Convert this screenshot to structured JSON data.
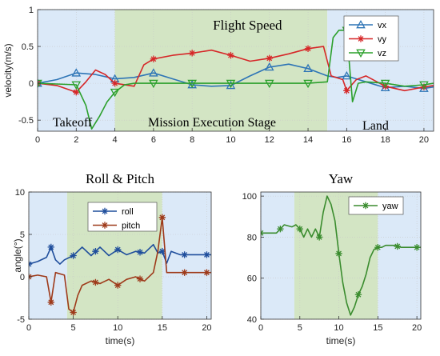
{
  "chart_data": [
    {
      "id": "velocity",
      "type": "line",
      "title": "Flight Speed",
      "xlabel": "",
      "ylabel": "velocity(m/s)",
      "xlim": [
        0,
        20.5
      ],
      "ylim": [
        -0.65,
        1.0
      ],
      "xticks": [
        0,
        2,
        4,
        6,
        8,
        10,
        12,
        14,
        16,
        18,
        20
      ],
      "yticks": [
        -0.5,
        0,
        0.5,
        1
      ],
      "ytick_labels": [
        "-0.5",
        "0",
        "0.5",
        "1"
      ],
      "grid": true,
      "legend_position": "top-right",
      "regions": [
        {
          "x0": 0,
          "x1": 4,
          "color": "#dbe9f8",
          "label": "Takeoff"
        },
        {
          "x0": 4,
          "x1": 15,
          "color": "#d3e5c4",
          "label": "Mission Execution Stage"
        },
        {
          "x0": 15,
          "x1": 20.5,
          "color": "#dbe9f8",
          "label": "Land"
        }
      ],
      "series": [
        {
          "name": "vx",
          "color": "#2e75b6",
          "marker": "triangle",
          "x": [
            0,
            1,
            2,
            3,
            4,
            5,
            6,
            7,
            8,
            9,
            10,
            11,
            12,
            13,
            14,
            15,
            15.5,
            16,
            16.5,
            17,
            18,
            19,
            20,
            20.5
          ],
          "y": [
            0,
            0.05,
            0.14,
            0.12,
            0.06,
            0.08,
            0.14,
            0.06,
            -0.02,
            -0.04,
            -0.03,
            0.1,
            0.22,
            0.26,
            0.2,
            0.1,
            0.08,
            0.1,
            0.06,
            0.02,
            -0.06,
            -0.04,
            -0.07,
            -0.05
          ],
          "marker_x": [
            0,
            2,
            4,
            6,
            8,
            10,
            12,
            14,
            16,
            18,
            20
          ]
        },
        {
          "name": "vy",
          "color": "#d62728",
          "marker": "star",
          "x": [
            0,
            1,
            2,
            2.5,
            3,
            3.5,
            4,
            5,
            5.5,
            6,
            7,
            8,
            9,
            10,
            11,
            12,
            13,
            14,
            14.8,
            15.2,
            15.8,
            16,
            16.5,
            17,
            18,
            19,
            20,
            20.5
          ],
          "y": [
            0,
            -0.03,
            -0.12,
            0.02,
            0.18,
            0.12,
            0.0,
            -0.04,
            0.25,
            0.33,
            0.38,
            0.41,
            0.45,
            0.38,
            0.3,
            0.34,
            0.4,
            0.47,
            0.5,
            0.1,
            0.05,
            -0.1,
            0.05,
            0.1,
            -0.04,
            -0.1,
            -0.05,
            -0.03
          ],
          "marker_x": [
            0,
            2,
            4,
            6,
            8,
            10,
            12,
            14,
            16,
            18,
            20
          ]
        },
        {
          "name": "vz",
          "color": "#2ca02c",
          "marker": "triangle-down",
          "x": [
            0,
            1,
            2,
            2.5,
            2.8,
            3.2,
            3.6,
            4,
            4.5,
            5,
            6,
            8,
            10,
            12,
            14,
            15,
            15.3,
            15.6,
            16,
            16.3,
            16.6,
            17,
            18,
            19,
            20,
            20.5
          ],
          "y": [
            0,
            -0.01,
            -0.02,
            -0.3,
            -0.62,
            -0.45,
            -0.25,
            -0.12,
            -0.02,
            0,
            0,
            0,
            0,
            0,
            0,
            0.02,
            0.62,
            0.72,
            0.72,
            -0.25,
            0.0,
            0.02,
            0.0,
            -0.04,
            -0.02,
            0.0
          ],
          "marker_x": [
            0,
            2,
            4,
            6,
            8,
            10,
            12,
            14,
            16,
            18,
            20
          ]
        }
      ]
    },
    {
      "id": "rollpitch",
      "type": "line",
      "title": "Roll & Pitch",
      "xlabel": "time(s)",
      "ylabel": "angle(°)",
      "xlim": [
        0,
        20.5
      ],
      "ylim": [
        -5,
        10
      ],
      "xticks": [
        0,
        5,
        10,
        15,
        20
      ],
      "yticks": [
        -5,
        0,
        5,
        10
      ],
      "grid": true,
      "legend_position": "top",
      "regions": [
        {
          "x0": 0,
          "x1": 4.3,
          "color": "#dbe9f8"
        },
        {
          "x0": 4.3,
          "x1": 15,
          "color": "#d3e5c4"
        },
        {
          "x0": 15,
          "x1": 20.5,
          "color": "#dbe9f8"
        }
      ],
      "series": [
        {
          "name": "roll",
          "color": "#1f4e9c",
          "marker": "star",
          "x": [
            0,
            1,
            2,
            2.5,
            3,
            3.5,
            4,
            5,
            6,
            7,
            8,
            9,
            10,
            11,
            12,
            13,
            14,
            14.5,
            15,
            15.5,
            16,
            17,
            18,
            19,
            20,
            20.5
          ],
          "y": [
            1.5,
            1.8,
            2.3,
            3.5,
            2.0,
            1.5,
            2.0,
            2.5,
            3.5,
            2.5,
            3.5,
            2.5,
            3.2,
            2.6,
            3.0,
            2.8,
            3.8,
            2.8,
            3.0,
            1.6,
            3.0,
            2.6,
            2.6,
            2.6,
            2.6,
            2.6
          ],
          "marker_x": [
            0,
            2.5,
            5,
            7.5,
            10,
            12.5,
            15,
            17.5,
            20
          ]
        },
        {
          "name": "pitch",
          "color": "#9e3a1a",
          "marker": "star",
          "x": [
            0,
            1,
            2,
            2.5,
            3,
            4,
            4.5,
            5,
            5.5,
            6,
            7,
            8,
            9,
            10,
            11,
            12,
            13,
            14,
            14.5,
            15,
            15.5,
            16,
            17,
            18,
            19,
            20,
            20.5
          ],
          "y": [
            0,
            0.2,
            0,
            -3,
            0.5,
            0.2,
            -3.8,
            -4.2,
            -2.2,
            -1,
            -0.5,
            -0.8,
            -0.3,
            -1,
            -0.3,
            0,
            -0.5,
            0.5,
            3,
            7,
            0.5,
            0.5,
            0.5,
            0.5,
            0.5,
            0.5,
            0.5
          ],
          "marker_x": [
            0,
            2.5,
            5,
            7.5,
            10,
            12.5,
            15,
            17.5,
            20
          ]
        }
      ]
    },
    {
      "id": "yaw",
      "type": "line",
      "title": "Yaw",
      "xlabel": "time(s)",
      "ylabel": "",
      "xlim": [
        0,
        20.5
      ],
      "ylim": [
        40,
        102
      ],
      "xticks": [
        0,
        5,
        10,
        15,
        20
      ],
      "yticks": [
        40,
        60,
        80,
        100
      ],
      "grid": true,
      "legend_position": "top-right",
      "regions": [
        {
          "x0": 0,
          "x1": 4.3,
          "color": "#dbe9f8"
        },
        {
          "x0": 4.3,
          "x1": 15,
          "color": "#d3e5c4"
        },
        {
          "x0": 15,
          "x1": 20.5,
          "color": "#dbe9f8"
        }
      ],
      "series": [
        {
          "name": "yaw",
          "color": "#3a8c2e",
          "marker": "star",
          "x": [
            0,
            1,
            2,
            2.5,
            3,
            4,
            4.5,
            5,
            5.5,
            6,
            6.5,
            7,
            7.5,
            8,
            8.5,
            9,
            9.5,
            10,
            10.5,
            11,
            11.5,
            12,
            12.5,
            13,
            13.5,
            14,
            14.5,
            15,
            15.5,
            16,
            17,
            18,
            19,
            20,
            20.5
          ],
          "y": [
            82,
            82,
            82,
            84,
            86,
            85,
            86,
            84,
            80,
            84,
            80,
            84,
            80,
            92,
            100,
            96,
            88,
            72,
            58,
            48,
            42,
            46,
            52,
            56,
            62,
            70,
            74,
            75,
            75,
            76,
            76,
            75,
            75,
            75,
            75
          ],
          "marker_x": [
            0,
            2.5,
            5,
            7.5,
            10,
            12.5,
            15,
            17.5,
            20
          ]
        }
      ]
    }
  ]
}
